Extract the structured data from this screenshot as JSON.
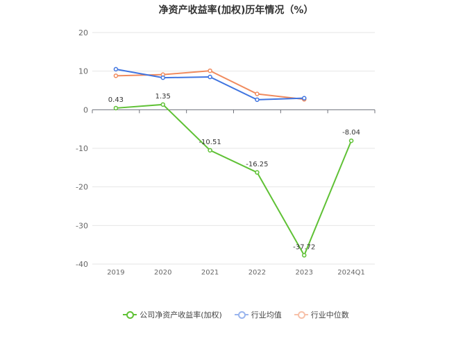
{
  "chart_data": {
    "type": "line",
    "title": "净资产收益率(加权)历年情况（%）",
    "categories": [
      "2019",
      "2020",
      "2021",
      "2022",
      "2023",
      "2024Q1"
    ],
    "ylim": [
      -40,
      20
    ],
    "yticks": [
      20,
      10,
      0,
      -10,
      -20,
      -30,
      -40
    ],
    "grid": true,
    "legend_position": "bottom",
    "series": [
      {
        "name": "公司净资产收益率(加权)",
        "color": "#5fc135",
        "values": [
          0.43,
          1.35,
          -10.51,
          -16.25,
          -37.72,
          -8.04
        ],
        "labels": [
          "0.43",
          "1.35",
          "-10.51",
          "-16.25",
          "-37.72",
          "-8.04"
        ]
      },
      {
        "name": "行业均值",
        "color": "#3f74e0",
        "values": [
          10.5,
          8.3,
          8.5,
          2.6,
          3.0,
          null
        ]
      },
      {
        "name": "行业中位数",
        "color": "#f08a5d",
        "values": [
          8.8,
          9.1,
          10.1,
          4.1,
          2.7,
          null
        ]
      }
    ]
  }
}
